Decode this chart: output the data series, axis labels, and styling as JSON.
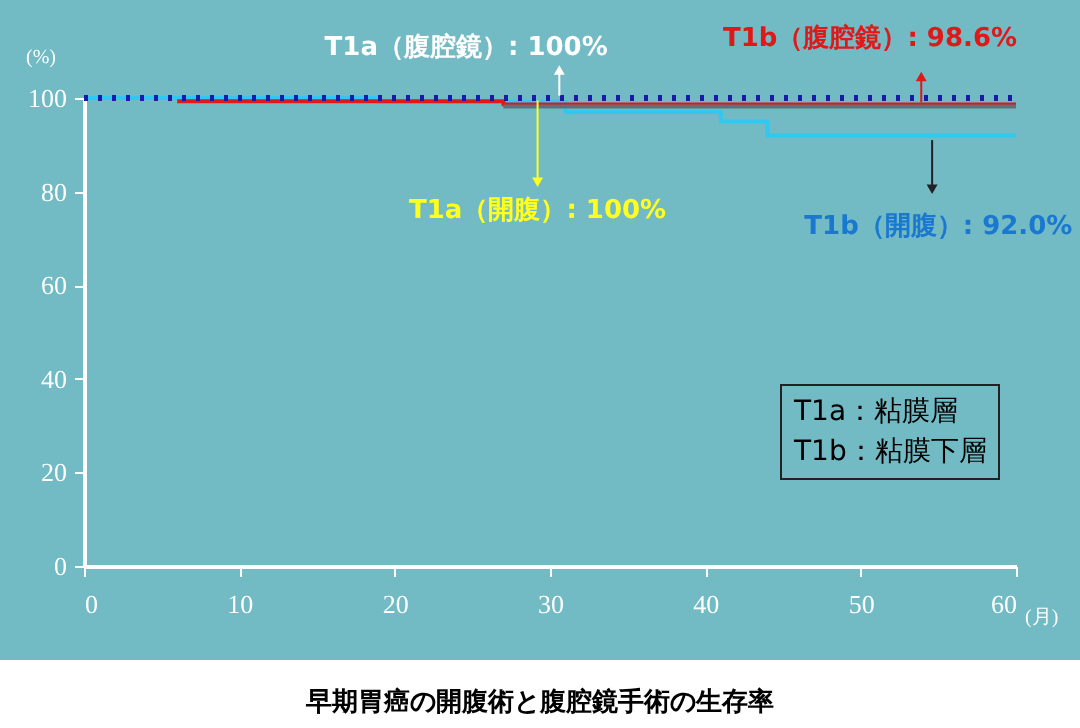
{
  "chart_data": {
    "type": "step",
    "title": "早期胃癌の開腹術と腹腔鏡手術の生存率",
    "xlabel": "(月)",
    "ylabel": "(%)",
    "xlim": [
      0,
      60
    ],
    "ylim": [
      0,
      100
    ],
    "xticks": [
      0,
      10,
      20,
      30,
      40,
      50,
      60
    ],
    "yticks": [
      0,
      20,
      40,
      60,
      80,
      100
    ],
    "grid": false,
    "series": [
      {
        "color": "#1a1aa8",
        "line_style": "dotted",
        "x": [
          0,
          60
        ],
        "values": [
          100,
          100
        ]
      },
      {
        "color": "#607078",
        "x": [
          27,
          60
        ],
        "values": [
          98.2,
          98.2
        ]
      },
      {
        "color": "#e01818",
        "x": [
          6,
          27,
          60
        ],
        "values": [
          99.3,
          98.6,
          98.6
        ]
      },
      {
        "color": "#30c8f0",
        "x": [
          0,
          19,
          27,
          31,
          41,
          44,
          60
        ],
        "values": [
          100,
          99.2,
          99.2,
          97,
          95,
          92,
          92
        ]
      }
    ],
    "annotations": [
      {
        "text": "T1a（腹腔鏡）: 100%",
        "x": 30.6,
        "y": 100
      },
      {
        "text": "T1a（開腹）: 100%",
        "x": 29.2,
        "y": 100
      },
      {
        "text": "T1b（腹腔鏡）: 98.6%",
        "x": 53.9,
        "y": 98.6
      },
      {
        "text": "T1b（開腹）: 92.0%",
        "x": 54.6,
        "y": 92
      },
      "T1a：粘膜層",
      "T1b：粘膜下層"
    ]
  }
}
